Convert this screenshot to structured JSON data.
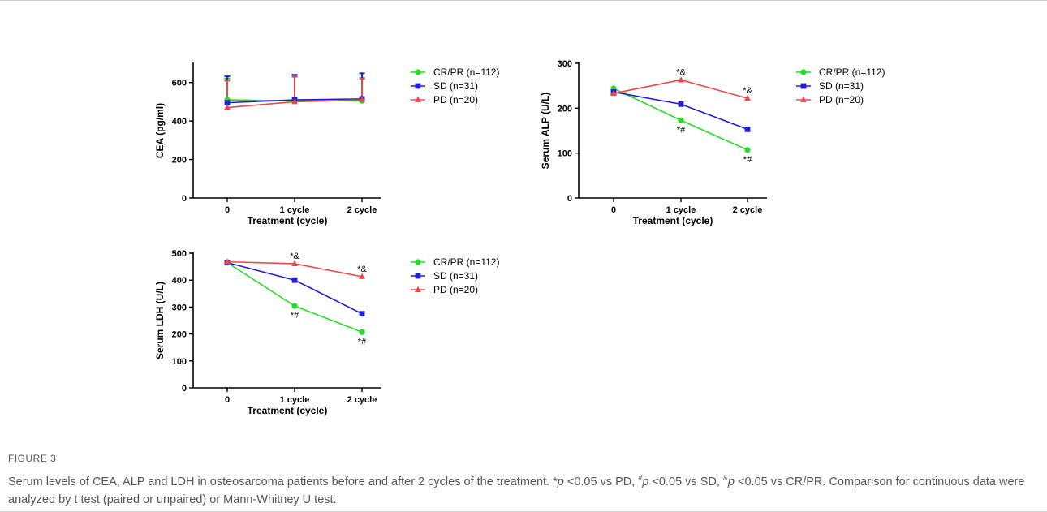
{
  "figure": {
    "label": "FIGURE 3",
    "caption": {
      "part1": "Serum levels of CEA, ALP and LDH in osteosarcoma patients before and after 2 cycles of the treatment. *",
      "p": "p",
      "t1": " <0.05 vs PD, ",
      "sup_hash": "#",
      "t2": " <0.05 vs SD, ",
      "sup_amp": "&",
      "t3": " <0.05 vs CR/PR. Comparison for continuous data were analyzed by t test (paired or unpaired) or Mann-Whitney U test."
    }
  },
  "colors": {
    "crpr": "#22dd22",
    "sd": "#1f1fd6",
    "pd": "#e84848",
    "axis": "#000000"
  },
  "chart_data": [
    {
      "id": "cea",
      "type": "line",
      "xlabel": "Treatment (cycle)",
      "ylabel": "CEA (pg/ml)",
      "categories": [
        "0",
        "1 cycle",
        "2 cycle"
      ],
      "ylim": [
        0,
        700
      ],
      "yticks": [
        0,
        200,
        400,
        600
      ],
      "legend": [
        "CR/PR (n=112)",
        "SD (n=31)",
        "PD (n=20)"
      ],
      "series": [
        {
          "name": "CR/PR (n=112)",
          "marker": "circle",
          "values": [
            510,
            505,
            505
          ],
          "err_high": [
            620,
            635,
            625
          ]
        },
        {
          "name": "SD (n=31)",
          "marker": "square",
          "values": [
            495,
            510,
            515
          ],
          "err_high": [
            632,
            640,
            648
          ]
        },
        {
          "name": "PD (n=20)",
          "marker": "triangle",
          "values": [
            470,
            500,
            510
          ],
          "err_high": [
            610,
            630,
            620
          ]
        }
      ],
      "annotations": []
    },
    {
      "id": "alp",
      "type": "line",
      "xlabel": "Treatment (cycle)",
      "ylabel": "Serum ALP (U/L)",
      "categories": [
        "0",
        "1 cycle",
        "2 cycle"
      ],
      "ylim": [
        0,
        300
      ],
      "yticks": [
        0,
        100,
        200,
        300
      ],
      "legend": [
        "CR/PR (n=112)",
        "SD (n=31)",
        "PD (n=20)"
      ],
      "series": [
        {
          "name": "CR/PR (n=112)",
          "marker": "circle",
          "values": [
            244,
            173,
            107
          ]
        },
        {
          "name": "SD (n=31)",
          "marker": "square",
          "values": [
            236,
            209,
            153
          ]
        },
        {
          "name": "PD (n=20)",
          "marker": "triangle",
          "values": [
            233,
            263,
            222
          ]
        }
      ],
      "annotations": [
        {
          "text": "*&",
          "cat": 1,
          "value": 263,
          "pos": "above"
        },
        {
          "text": "*&",
          "cat": 2,
          "value": 222,
          "pos": "above"
        },
        {
          "text": "*#",
          "cat": 1,
          "value": 173,
          "pos": "below"
        },
        {
          "text": "*#",
          "cat": 2,
          "value": 107,
          "pos": "below"
        }
      ]
    },
    {
      "id": "ldh",
      "type": "line",
      "xlabel": "Treatment (cycle)",
      "ylabel": "Serum LDH (U/L)",
      "categories": [
        "0",
        "1 cycle",
        "2 cycle"
      ],
      "ylim": [
        0,
        500
      ],
      "yticks": [
        0,
        100,
        200,
        300,
        400,
        500
      ],
      "legend": [
        "CR/PR (n=112)",
        "SD (n=31)",
        "PD (n=20)"
      ],
      "series": [
        {
          "name": "CR/PR (n=112)",
          "marker": "circle",
          "values": [
            465,
            304,
            207
          ]
        },
        {
          "name": "SD (n=31)",
          "marker": "square",
          "values": [
            465,
            400,
            275
          ]
        },
        {
          "name": "PD (n=20)",
          "marker": "triangle",
          "values": [
            468,
            461,
            413
          ]
        }
      ],
      "annotations": [
        {
          "text": "*&",
          "cat": 1,
          "value": 461,
          "pos": "above"
        },
        {
          "text": "*&",
          "cat": 2,
          "value": 413,
          "pos": "above"
        },
        {
          "text": "*#",
          "cat": 1,
          "value": 304,
          "pos": "below"
        },
        {
          "text": "*#",
          "cat": 2,
          "value": 207,
          "pos": "below"
        }
      ]
    }
  ]
}
